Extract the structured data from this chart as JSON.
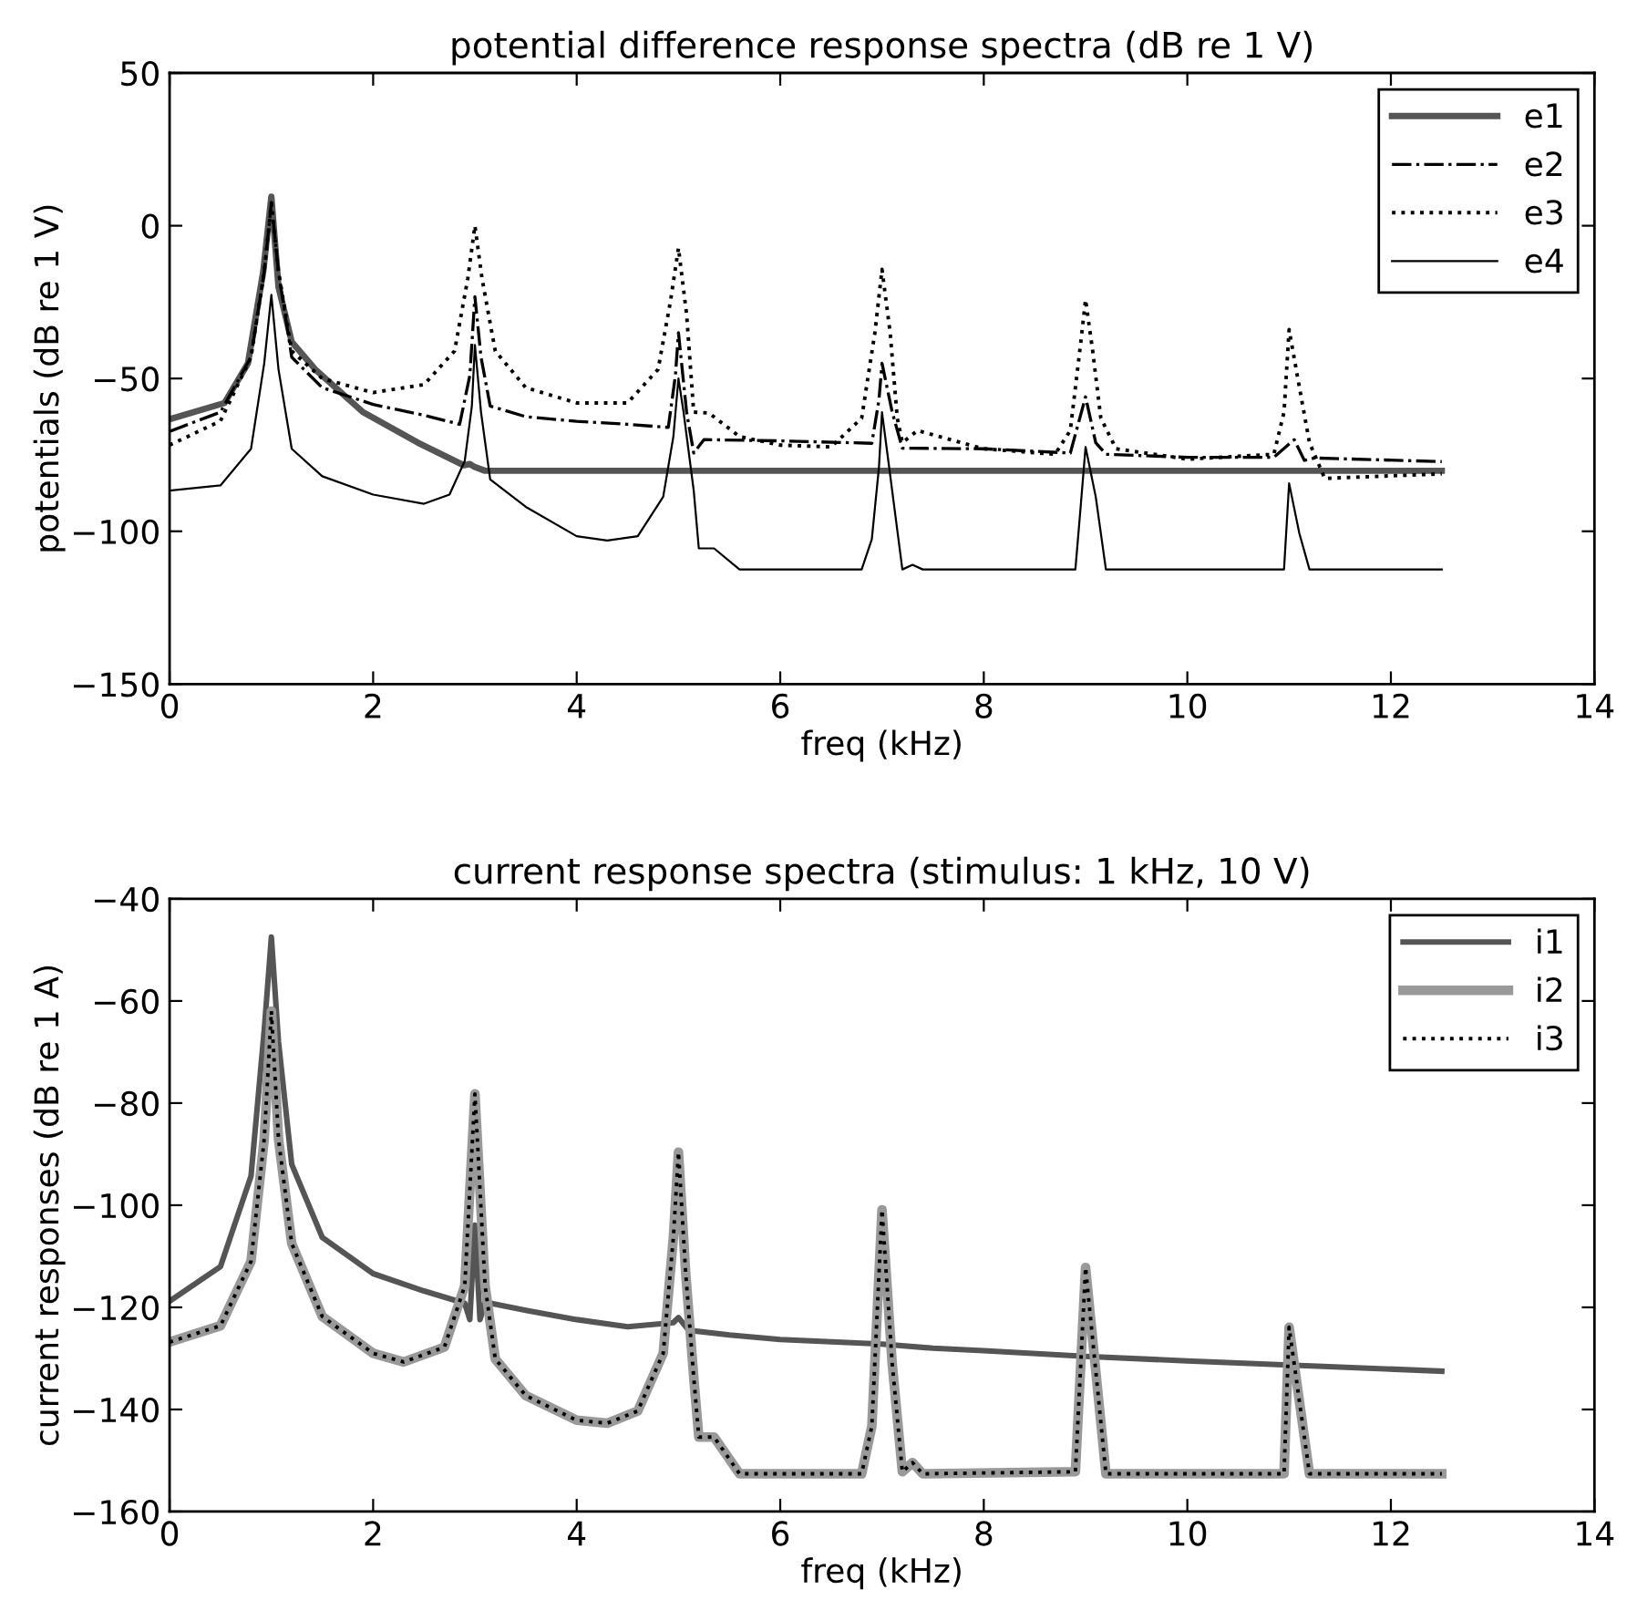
{
  "chart_data": [
    {
      "type": "line",
      "title": "potential difference response spectra (dB re 1 V)",
      "xlabel": "freq (kHz)",
      "ylabel": "potentials (dB re 1 V)",
      "xlim": [
        0,
        14
      ],
      "xticks": [
        0,
        2,
        4,
        6,
        8,
        10,
        12,
        14
      ],
      "ylim": [
        -150,
        50
      ],
      "yticks": [
        -150,
        -100,
        -50,
        0,
        50
      ],
      "grid": false,
      "legend": "top right",
      "series": [
        {
          "name": "e1",
          "color": "#555555",
          "line_style": "solid",
          "x": [
            0,
            0.54,
            0.77,
            0.92,
            1.0,
            1.07,
            1.2,
            1.43,
            1.9,
            2.44,
            2.89,
            2.95,
            3.0,
            3.1,
            12.5
          ],
          "values": [
            -63.3,
            -58,
            -45,
            -15,
            9.5,
            -20,
            -38,
            -47,
            -61,
            -71,
            -78.4,
            -78,
            -79,
            -80.2,
            -80.2
          ]
        },
        {
          "name": "e2",
          "color": "#000000",
          "line_style": "dashdot",
          "x": [
            0,
            0.5,
            0.8,
            0.93,
            1.0,
            1.07,
            1.2,
            1.5,
            2.0,
            2.5,
            2.85,
            2.95,
            3.0,
            3.06,
            3.15,
            3.5,
            4.0,
            4.5,
            4.9,
            4.97,
            5.0,
            5.08,
            5.15,
            5.25,
            6.0,
            6.9,
            6.97,
            7.0,
            7.1,
            7.2,
            8.0,
            8.85,
            9.0,
            9.1,
            9.2,
            10.0,
            10.85,
            11.05,
            11.15,
            11.25,
            12.5
          ],
          "values": [
            -67.3,
            -61,
            -43,
            -15,
            7.5,
            -15,
            -43,
            -53,
            -58.5,
            -62,
            -65,
            -49,
            -23.2,
            -43,
            -59,
            -62.5,
            -64,
            -65,
            -66,
            -49,
            -35,
            -61,
            -74.4,
            -70,
            -70.4,
            -71.2,
            -57,
            -45,
            -61,
            -72.8,
            -73,
            -74.4,
            -56,
            -71,
            -74.8,
            -75.8,
            -75.8,
            -70,
            -76.8,
            -76,
            -77.2
          ]
        },
        {
          "name": "e3",
          "color": "#000000",
          "line_style": "dotted",
          "x": [
            0,
            0.5,
            0.8,
            0.93,
            1.0,
            1.07,
            1.2,
            1.5,
            2.0,
            2.5,
            2.8,
            2.93,
            3.0,
            3.07,
            3.2,
            3.5,
            4.0,
            4.5,
            4.8,
            4.92,
            5.0,
            5.08,
            5.15,
            5.3,
            5.6,
            6.0,
            6.5,
            6.8,
            6.93,
            7.0,
            7.08,
            7.15,
            7.2,
            7.35,
            8.0,
            8.7,
            8.85,
            8.95,
            9.0,
            9.07,
            9.15,
            9.3,
            10.0,
            10.85,
            10.95,
            11.0,
            11.08,
            11.2,
            11.35,
            12.5
          ],
          "values": [
            -71.8,
            -63.9,
            -43,
            -15,
            7.5,
            -15,
            -41,
            -50,
            -54.6,
            -52,
            -41,
            -17.3,
            0,
            -17.3,
            -41,
            -53,
            -58,
            -58,
            -47,
            -25,
            -7.3,
            -29,
            -61,
            -61.3,
            -69,
            -71.8,
            -72.4,
            -63,
            -35,
            -14.3,
            -35,
            -63,
            -71,
            -67,
            -73,
            -74.8,
            -67,
            -39,
            -24.2,
            -41,
            -63,
            -73,
            -76.4,
            -74.8,
            -61,
            -34,
            -49,
            -71,
            -82.7,
            -81.2
          ]
        },
        {
          "name": "e4",
          "color": "#000000",
          "line_style": "solid",
          "x": [
            0,
            0.5,
            0.8,
            0.93,
            1.0,
            1.07,
            1.2,
            1.5,
            2.0,
            2.5,
            2.75,
            2.9,
            2.97,
            3.0,
            3.06,
            3.15,
            3.5,
            4.0,
            4.3,
            4.6,
            4.85,
            4.95,
            5.0,
            5.05,
            5.15,
            5.2,
            5.35,
            5.6,
            6.8,
            6.9,
            6.97,
            7.0,
            7.2,
            7.3,
            7.4,
            8.9,
            8.95,
            9.0,
            9.1,
            9.2,
            10.95,
            11.0,
            11.1,
            11.2,
            12.5
          ],
          "values": [
            -86.7,
            -85,
            -73,
            -45,
            -22.6,
            -47,
            -73,
            -82,
            -88,
            -91,
            -88,
            -77,
            -59,
            -39,
            -61,
            -83,
            -92,
            -101.6,
            -103,
            -101.6,
            -88.7,
            -69,
            -50,
            -61,
            -86.7,
            -105.6,
            -105.6,
            -112.5,
            -112.5,
            -102.6,
            -79,
            -61,
            -112.5,
            -111,
            -112.5,
            -112.5,
            -92.7,
            -72.4,
            -88.7,
            -112.5,
            -112.5,
            -84.3,
            -100.6,
            -112.5,
            -112.5
          ]
        }
      ]
    },
    {
      "type": "line",
      "title": "current response spectra (stimulus: 1 kHz, 10 V)",
      "xlabel": "freq (kHz)",
      "ylabel": "current responses (dB re 1 A)",
      "xlim": [
        0,
        14
      ],
      "xticks": [
        0,
        2,
        4,
        6,
        8,
        10,
        12,
        14
      ],
      "ylim": [
        -160,
        -40
      ],
      "yticks": [
        -160,
        -140,
        -120,
        -100,
        -80,
        -60,
        -40
      ],
      "grid": false,
      "legend": "top right",
      "series": [
        {
          "name": "i1",
          "color": "#555555",
          "line_style": "solid",
          "x": [
            0,
            0.5,
            0.8,
            0.93,
            1.0,
            1.07,
            1.2,
            1.5,
            2.0,
            2.5,
            2.9,
            2.95,
            3.0,
            3.05,
            3.1,
            3.5,
            4.0,
            4.5,
            4.95,
            5.0,
            5.1,
            5.5,
            6.0,
            7.0,
            7.5,
            8.0,
            9.0,
            10.0,
            11.0,
            12.5
          ],
          "values": [
            -118.8,
            -112,
            -94.3,
            -65.7,
            -47.5,
            -68,
            -92,
            -106.3,
            -113.4,
            -116.8,
            -119.2,
            -122.4,
            -103.9,
            -122.4,
            -119,
            -120.6,
            -122.4,
            -123.8,
            -123,
            -122,
            -124.5,
            -125.4,
            -126.3,
            -127.2,
            -128,
            -128.5,
            -129.6,
            -130.5,
            -131.3,
            -132.5
          ]
        },
        {
          "name": "i2",
          "color": "#999999",
          "line_style": "solid",
          "x": [
            0,
            0.5,
            0.8,
            0.93,
            1.0,
            1.07,
            1.2,
            1.5,
            2.0,
            2.3,
            2.7,
            2.9,
            3.0,
            3.1,
            3.2,
            3.5,
            4.0,
            4.3,
            4.6,
            4.85,
            4.95,
            5.0,
            5.07,
            5.15,
            5.2,
            5.35,
            5.6,
            6.8,
            6.9,
            7.0,
            7.1,
            7.2,
            7.3,
            7.4,
            8.9,
            9.0,
            9.2,
            10.95,
            11.0,
            11.2,
            12.5
          ],
          "values": [
            -126.8,
            -123.6,
            -111,
            -87,
            -62,
            -87,
            -107.5,
            -121.8,
            -129,
            -130.7,
            -127.8,
            -115.8,
            -78.2,
            -115.8,
            -130.1,
            -137.3,
            -142.1,
            -142.7,
            -140.3,
            -129,
            -106.3,
            -89.6,
            -113,
            -133.7,
            -145.4,
            -145.4,
            -152.6,
            -152.6,
            -143.3,
            -100.9,
            -131,
            -152.2,
            -150.4,
            -152.6,
            -152.2,
            -112.2,
            -152.6,
            -152.6,
            -123.9,
            -152.6,
            -152.6
          ]
        },
        {
          "name": "i3",
          "color": "#000000",
          "line_style": "dotted",
          "x": [
            0,
            0.5,
            0.8,
            0.93,
            1.0,
            1.07,
            1.2,
            1.5,
            2.0,
            2.3,
            2.7,
            2.9,
            3.0,
            3.1,
            3.2,
            3.5,
            4.0,
            4.3,
            4.6,
            4.85,
            4.95,
            5.0,
            5.07,
            5.15,
            5.2,
            5.35,
            5.6,
            6.8,
            6.9,
            7.0,
            7.1,
            7.2,
            7.3,
            7.4,
            8.9,
            9.0,
            9.2,
            10.95,
            11.0,
            11.2,
            12.5
          ],
          "values": [
            -126.8,
            -123.6,
            -111,
            -87,
            -62,
            -87,
            -107.5,
            -121.8,
            -129,
            -130.7,
            -127.8,
            -115.8,
            -78.2,
            -115.8,
            -130.1,
            -137.3,
            -142.1,
            -142.7,
            -140.3,
            -129,
            -106.3,
            -89.6,
            -113,
            -133.7,
            -145.4,
            -145.4,
            -152.6,
            -152.6,
            -143.3,
            -100.9,
            -131,
            -152.2,
            -150.4,
            -152.6,
            -152.2,
            -112.2,
            -152.6,
            -152.6,
            -123.9,
            -152.6,
            -152.6
          ]
        }
      ]
    }
  ]
}
